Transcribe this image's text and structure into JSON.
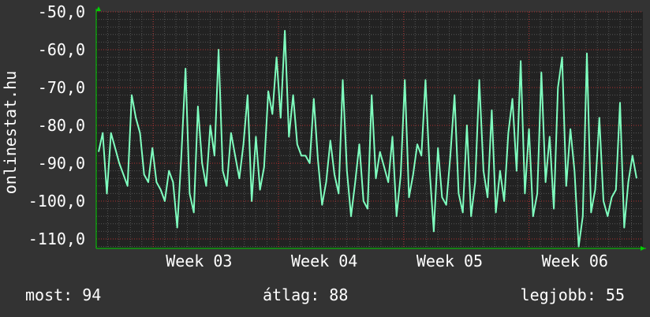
{
  "side_label": "onlinestat.hu",
  "footer": {
    "current": "most: 94",
    "average": "átlag: 88",
    "best": "legjobb: 55"
  },
  "colors": {
    "background": "#333333",
    "plot_background": "#222222",
    "grid_major": "#b03030",
    "grid_minor": "#555555",
    "line": "#7fffbf",
    "axis_arrow": "#00d000",
    "text": "#ffffff"
  },
  "chart_data": {
    "type": "line",
    "title": "",
    "xlabel": "",
    "ylabel": "",
    "ylim": [
      -112,
      -50
    ],
    "y_ticks": [
      -50,
      -60,
      -70,
      -80,
      -90,
      -100,
      -110
    ],
    "y_tick_labels": [
      "-50,0",
      "-60,0",
      "-70,0",
      "-80,0",
      "-90,0",
      "-100,0",
      "-110,0"
    ],
    "x_tick_labels": [
      "Week 03",
      "Week 04",
      "Week 05",
      "Week 06"
    ],
    "x_tick_days": [
      5,
      16,
      27,
      38
    ],
    "xlim": [
      0,
      48
    ],
    "grid": true,
    "series": [
      {
        "values": [
          -87,
          -82,
          -98,
          -82,
          -86,
          -90,
          -93,
          -96,
          -72,
          -78,
          -82,
          -93,
          -95,
          -86,
          -95,
          -97,
          -100,
          -92,
          -95,
          -107,
          -88,
          -65,
          -98,
          -103,
          -75,
          -90,
          -96,
          -80,
          -88,
          -60,
          -92,
          -96,
          -82,
          -88,
          -94,
          -85,
          -72,
          -100,
          -83,
          -97,
          -91,
          -71,
          -77,
          -62,
          -78,
          -55,
          -83,
          -72,
          -85,
          -88,
          -88,
          -90,
          -73,
          -89,
          -101,
          -95,
          -84,
          -93,
          -98,
          -68,
          -92,
          -104,
          -95,
          -85,
          -100,
          -102,
          -72,
          -94,
          -87,
          -91,
          -95,
          -83,
          -104,
          -93,
          -68,
          -99,
          -93,
          -85,
          -88,
          -68,
          -92,
          -108,
          -86,
          -99,
          -101,
          -88,
          -72,
          -98,
          -103,
          -80,
          -104,
          -95,
          -68,
          -92,
          -99,
          -76,
          -103,
          -92,
          -100,
          -82,
          -73,
          -92,
          -63,
          -98,
          -81,
          -104,
          -98,
          -66,
          -95,
          -83,
          -102,
          -70,
          -62,
          -96,
          -81,
          -92,
          -112,
          -104,
          -61,
          -103,
          -97,
          -78,
          -100,
          -104,
          -99,
          -97,
          -74,
          -107,
          -95,
          -88,
          -94
        ]
      }
    ]
  }
}
